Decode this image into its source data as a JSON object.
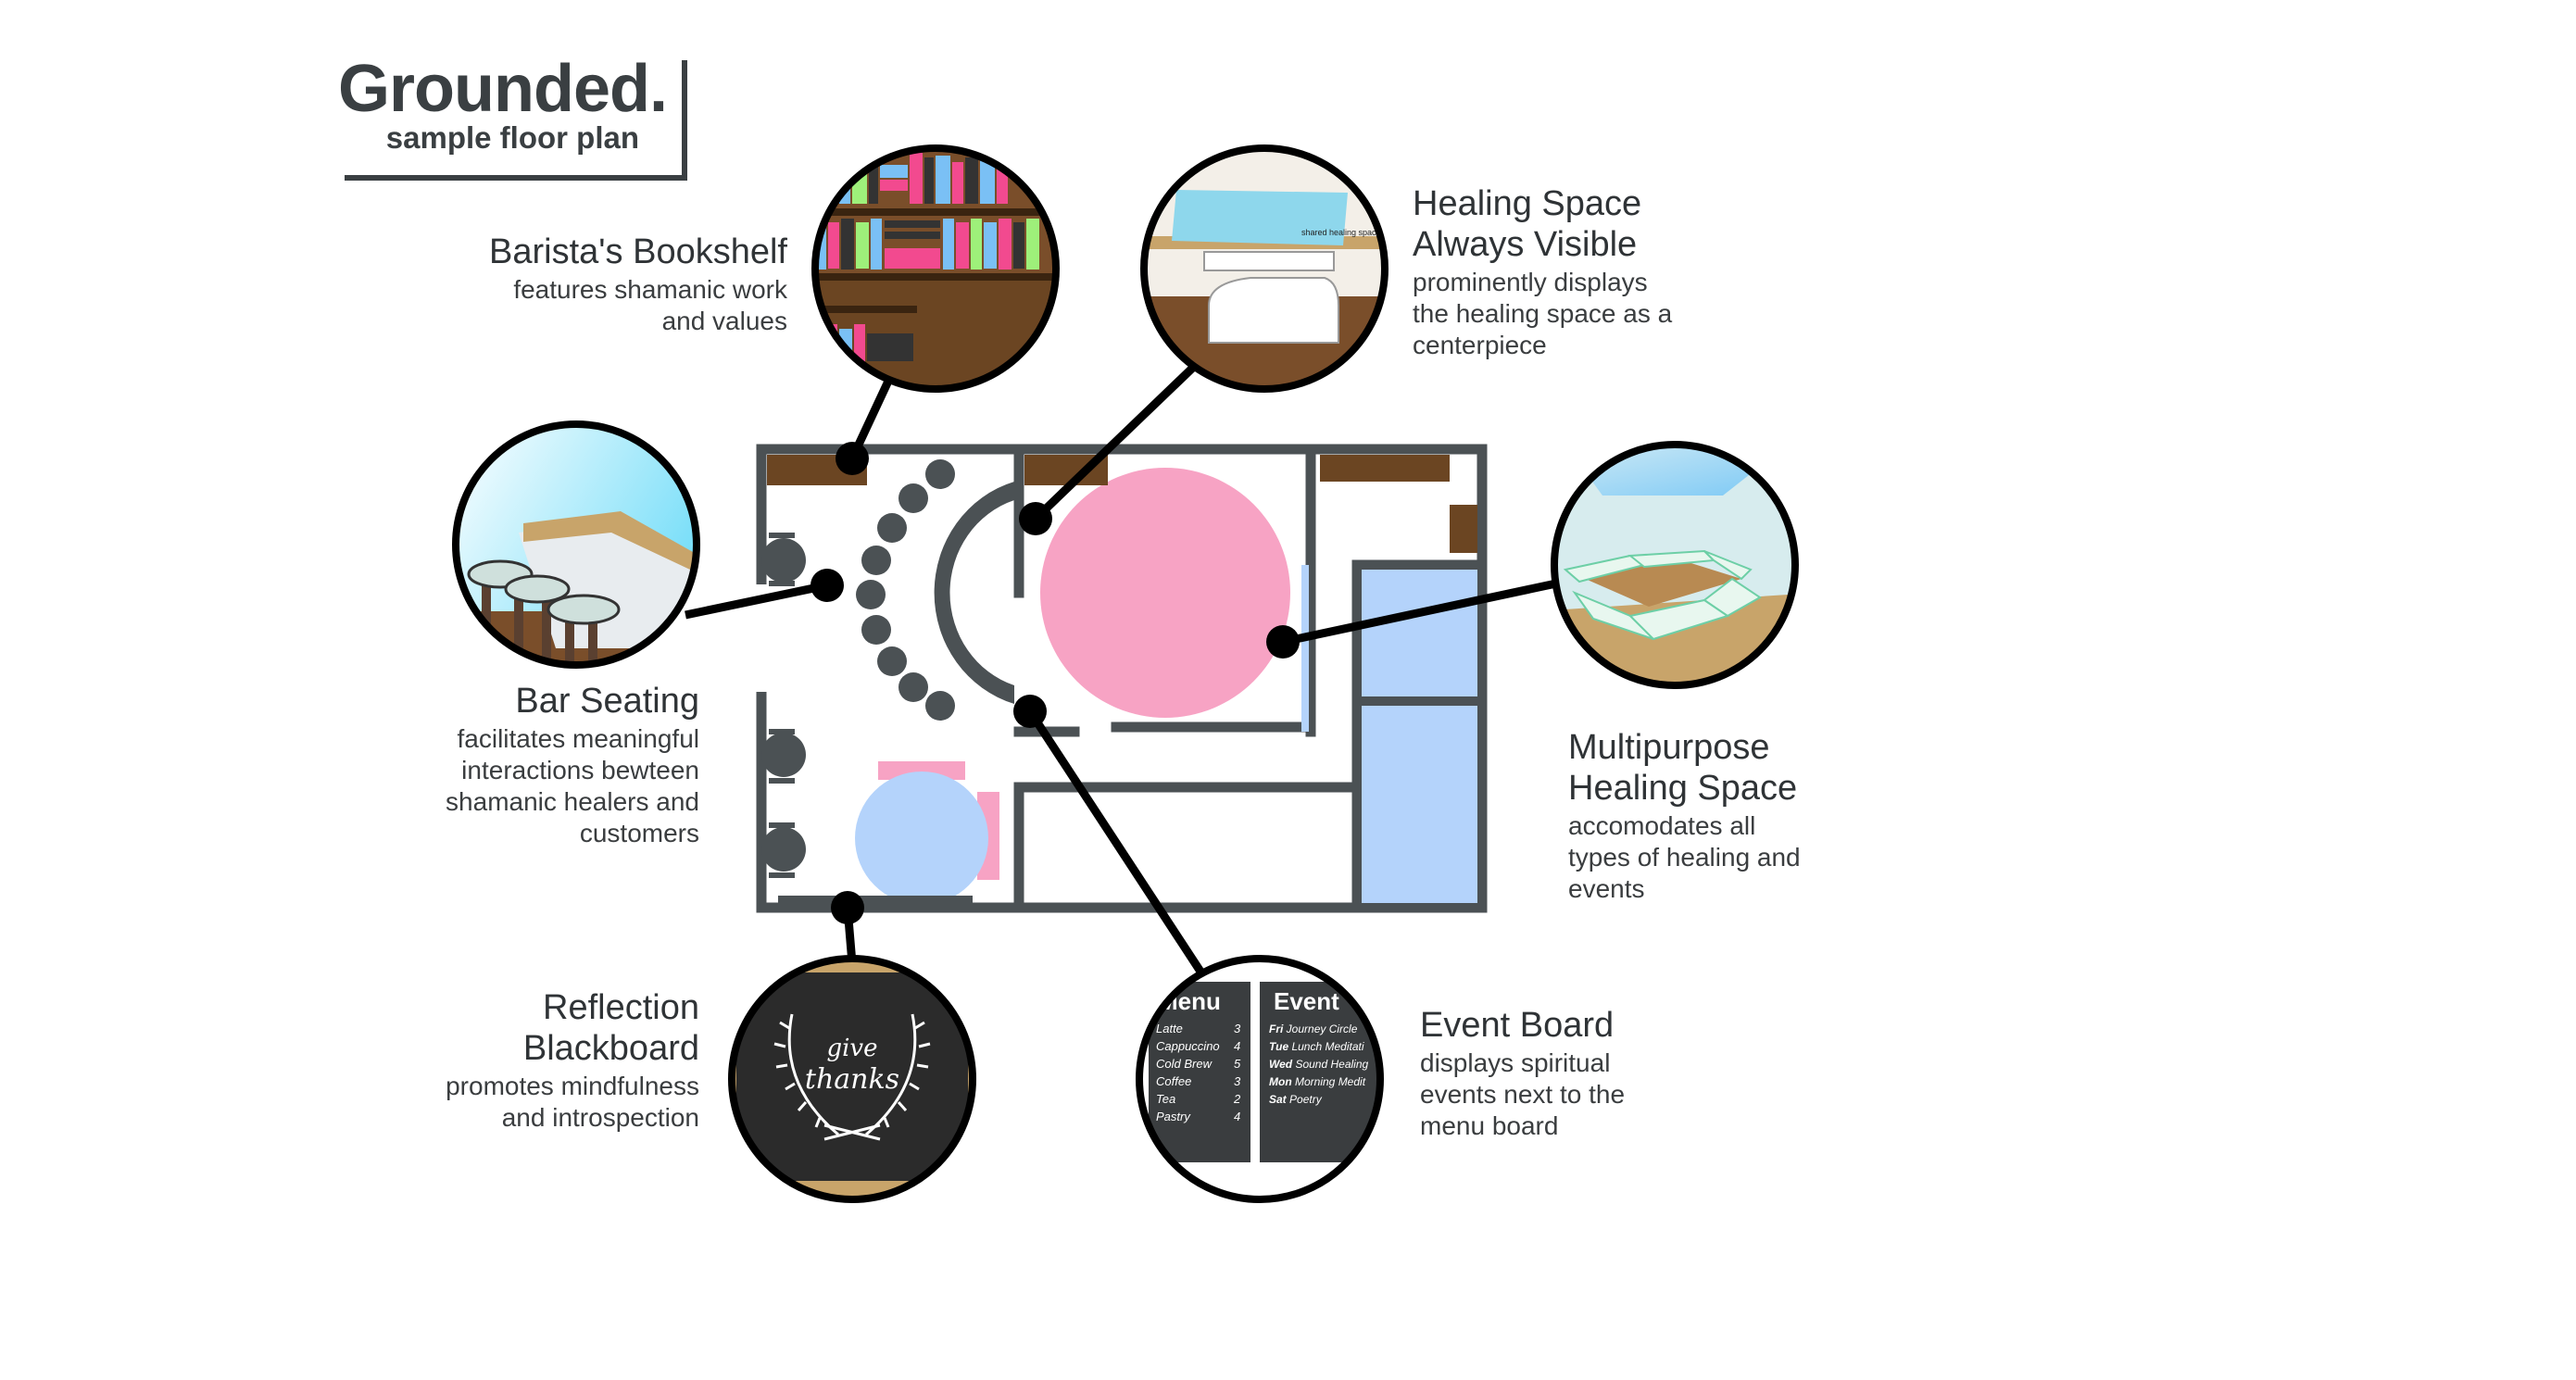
{
  "header": {
    "title": "Grounded.",
    "subtitle": "sample floor plan"
  },
  "callouts": [
    {
      "id": "bookshelf",
      "title": "Barista's Bookshelf",
      "desc": [
        "features shamanic work",
        "and values"
      ]
    },
    {
      "id": "healing-visible",
      "title": [
        "Healing Space",
        "Always Visible"
      ],
      "desc": [
        "prominently displays",
        "the healing space as a",
        "centerpiece"
      ]
    },
    {
      "id": "bar-seating",
      "title": "Bar Seating",
      "desc": [
        "facilitates meaningful",
        "interactions bewteen",
        "shamanic healers and",
        "customers"
      ]
    },
    {
      "id": "multipurpose",
      "title": [
        "Multipurpose",
        "Healing Space"
      ],
      "desc": [
        "accomodates all",
        "types of healing and",
        "events"
      ]
    },
    {
      "id": "blackboard",
      "title": [
        "Reflection",
        "Blackboard"
      ],
      "desc": [
        "promotes mindfulness",
        "and introspection"
      ]
    },
    {
      "id": "event-board",
      "title": "Event Board",
      "desc": [
        "displays spiritual",
        "events next to the",
        "menu board"
      ]
    }
  ],
  "vignettes": {
    "healing_sign": "shared healing space",
    "blackboard_text": [
      "give",
      "thanks"
    ],
    "menu": {
      "heading": "Menu",
      "items": [
        {
          "name": "Latte",
          "price": "3"
        },
        {
          "name": "Cappuccino",
          "price": "4"
        },
        {
          "name": "Cold Brew",
          "price": "5"
        },
        {
          "name": "Coffee",
          "price": "3"
        },
        {
          "name": "Tea",
          "price": "2"
        },
        {
          "name": "Pastry",
          "price": "4"
        }
      ]
    },
    "events": {
      "heading": "Event",
      "items": [
        {
          "day": "Fri",
          "name": "Journey Circle"
        },
        {
          "day": "Tue",
          "name": "Lunch Meditati"
        },
        {
          "day": "Wed",
          "name": "Sound Healing"
        },
        {
          "day": "Mon",
          "name": "Morning Medit"
        },
        {
          "day": "Sat",
          "name": "Poetry"
        }
      ]
    }
  },
  "colors": {
    "wall": "#4b5154",
    "wood": "#6b4522",
    "pink": "#f7a3c4",
    "blue": "#b4d3fb",
    "line": "#000000",
    "text": "#3a3d3f"
  }
}
